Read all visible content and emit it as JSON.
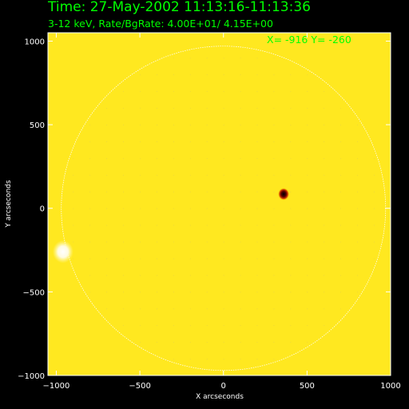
{
  "chart_data": {
    "type": "heatmap",
    "title": "Time: 27-May-2002 11:13:16-11:13:36",
    "subtitle": "3-12 keV, Rate/BgRate:  4.00E+01/  4.15E+00",
    "annotation": "X= -916 Y= -260",
    "xlabel": "X arcseconds",
    "ylabel": "Y arcseconds",
    "xlim": [
      -1050,
      1000
    ],
    "ylim": [
      -1000,
      1050
    ],
    "xticks": [
      {
        "value": -1000,
        "label": "−1000"
      },
      {
        "value": -500,
        "label": "−500"
      },
      {
        "value": 0,
        "label": "0"
      },
      {
        "value": 500,
        "label": "500"
      },
      {
        "value": 1000,
        "label": "1000"
      }
    ],
    "yticks": [
      {
        "value": 1000,
        "label": "1000"
      },
      {
        "value": 500,
        "label": "500"
      },
      {
        "value": 0,
        "label": "0"
      },
      {
        "value": -500,
        "label": "−500"
      },
      {
        "value": -1000,
        "label": "−1000"
      }
    ],
    "solar_limb": {
      "center": [
        0,
        0
      ],
      "radius": 970
    },
    "sources": [
      {
        "x": 360,
        "y": 85,
        "intensity": "peak",
        "color": "#000000"
      },
      {
        "x": -960,
        "y": -260,
        "intensity": "bright",
        "color": "#ffffff"
      }
    ],
    "grid": false,
    "colors": {
      "background": "#ffe820",
      "title": "#00ff00",
      "axes": "#ffffff"
    }
  }
}
